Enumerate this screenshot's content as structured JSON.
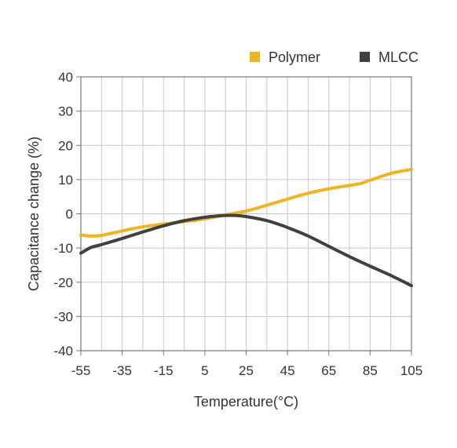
{
  "chart_data": {
    "type": "line",
    "title": "",
    "xlabel": "Temperature(°C)",
    "ylabel": "Capacitance change (%)",
    "xlim": [
      -55,
      105
    ],
    "ylim": [
      -40,
      40
    ],
    "x_ticks": [
      -55,
      -35,
      -15,
      5,
      25,
      45,
      65,
      85,
      105
    ],
    "y_ticks": [
      40,
      30,
      20,
      10,
      0,
      -10,
      -20,
      -30,
      -40
    ],
    "x_tick_labels": [
      "-55",
      "-35",
      "-15",
      "5",
      "25",
      "45",
      "65",
      "85",
      "105"
    ],
    "y_tick_labels": [
      "40",
      "30",
      "20",
      "10",
      "0",
      "-10",
      "-20",
      "-30",
      "-40"
    ],
    "grid": true,
    "legend_position": "top-right",
    "series": [
      {
        "name": "Polymer",
        "color": "#F0B323",
        "x": [
          -55,
          -50,
          -45,
          -35,
          -25,
          -15,
          -5,
          5,
          15,
          25,
          35,
          45,
          55,
          65,
          75,
          80,
          85,
          95,
          105
        ],
        "y": [
          -6.2,
          -6.5,
          -6.3,
          -5.0,
          -3.8,
          -3.0,
          -2.3,
          -1.5,
          -0.3,
          0.8,
          2.5,
          4.3,
          6.0,
          7.3,
          8.3,
          8.8,
          9.8,
          11.8,
          13.0
        ]
      },
      {
        "name": "MLCC",
        "color": "#404040",
        "x": [
          -55,
          -50,
          -45,
          -35,
          -25,
          -15,
          -5,
          5,
          10,
          15,
          20,
          25,
          35,
          45,
          55,
          65,
          75,
          85,
          95,
          105
        ],
        "y": [
          -11.5,
          -9.8,
          -9.0,
          -7.2,
          -5.3,
          -3.5,
          -2.0,
          -1.0,
          -0.7,
          -0.5,
          -0.5,
          -0.8,
          -2.0,
          -4.0,
          -6.5,
          -9.5,
          -12.5,
          -15.3,
          -18.0,
          -21.0
        ]
      }
    ]
  }
}
